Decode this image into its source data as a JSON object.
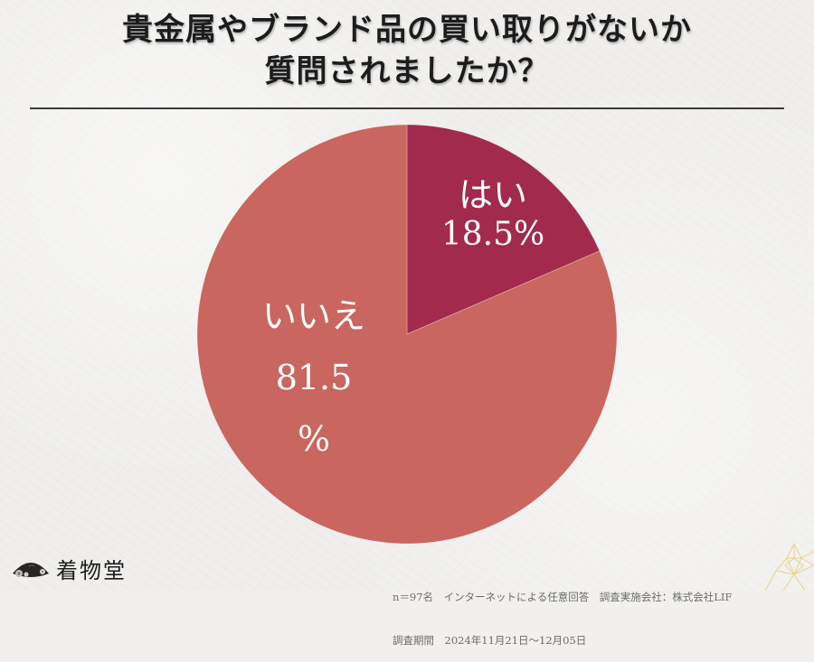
{
  "title": {
    "line1": "貴金属やブランド品の買い取りがないか",
    "line2": "質問されましたか？"
  },
  "colors": {
    "yes": "#a22a4c",
    "no": "#c96660",
    "background": "#f0efed",
    "title": "#1c1c1c",
    "footer": "#6c6c6c"
  },
  "labels": {
    "yes_label": "はい",
    "yes_pct": "18.5%",
    "no_label": "いいえ",
    "no_pct_number": "81.5",
    "no_pct_sign": "%"
  },
  "footer": {
    "line1": "n＝97名　インターネットによる任意回答　調査実施会社：株式会社LIF",
    "line2": "調査期間　2024年11月21日～12月05日"
  },
  "logo": {
    "name": "着物堂",
    "icon": "folding-fan-icon"
  },
  "chart_data": {
    "type": "pie",
    "title": "貴金属やブランド品の買い取りがないか質問されましたか？",
    "categories": [
      "はい",
      "いいえ"
    ],
    "values": [
      18.5,
      81.5
    ],
    "unit": "%",
    "colors": [
      "#a22a4c",
      "#c96660"
    ],
    "start_angle_deg": 0,
    "direction": "clockwise",
    "legend": "none (labels inside slices)",
    "sample_size": "n=97",
    "annotations": [
      "n＝97名　インターネットによる任意回答　調査実施会社：株式会社LIF",
      "調査期間　2024年11月21日～12月05日"
    ]
  }
}
